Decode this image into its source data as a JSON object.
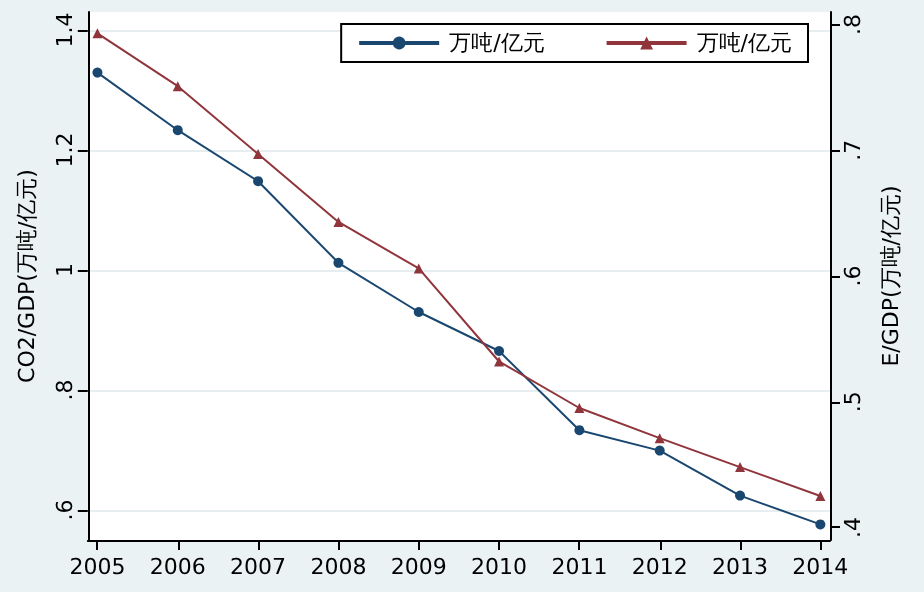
{
  "chart_data": {
    "type": "line",
    "xlabel": null,
    "ylabel": "CO2/GDP(万吨/亿元)",
    "y2label": "E/GDP(万吨/亿元)",
    "x": [
      2005,
      2006,
      2007,
      2008,
      2009,
      2010,
      2011,
      2012,
      2013,
      2014
    ],
    "xlim": [
      2004.88,
      2014.12
    ],
    "xticks": [
      2005,
      2006,
      2007,
      2008,
      2009,
      2010,
      2011,
      2012,
      2013,
      2014
    ],
    "ylim": [
      0.55,
      1.43
    ],
    "yticks": [
      {
        "value": 0.6,
        "label": ".6"
      },
      {
        "value": 0.8,
        "label": ".8"
      },
      1,
      1.2,
      1.4
    ],
    "y2lim": [
      0.39,
      0.81
    ],
    "y2ticks": [
      {
        "value": 0.4,
        "label": ".4"
      },
      {
        "value": 0.5,
        "label": ".5"
      },
      {
        "value": 0.6,
        "label": ".6"
      },
      {
        "value": 0.7,
        "label": ".7"
      },
      {
        "value": 0.8,
        "label": ".8"
      }
    ],
    "series": [
      {
        "name": "万吨/亿元",
        "color": "#1a476f",
        "marker": "circle",
        "values": [
          1.329,
          1.233,
          1.148,
          1.012,
          0.93,
          0.865,
          0.733,
          0.699,
          0.624,
          0.576
        ]
      },
      {
        "name": "万吨/亿元",
        "color": "#90353b",
        "marker": "triangle",
        "axis": "y2",
        "values": [
          0.793,
          0.751,
          0.697,
          0.643,
          0.606,
          0.532,
          0.495,
          0.471,
          0.448,
          0.425
        ]
      }
    ],
    "grid": "y",
    "legend": "top right"
  }
}
